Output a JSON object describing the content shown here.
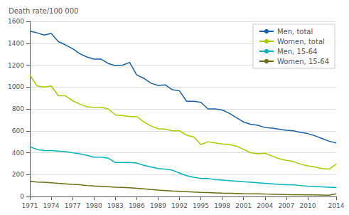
{
  "chart_data": {
    "type": "line",
    "ylabel": "Death rate/100 000",
    "x": [
      1971,
      1972,
      1973,
      1974,
      1975,
      1976,
      1977,
      1978,
      1979,
      1980,
      1981,
      1982,
      1983,
      1984,
      1985,
      1986,
      1987,
      1988,
      1989,
      1990,
      1991,
      1992,
      1993,
      1994,
      1995,
      1996,
      1997,
      1998,
      1999,
      2000,
      2001,
      2002,
      2003,
      2004,
      2005,
      2006,
      2007,
      2008,
      2009,
      2010,
      2011,
      2012,
      2013,
      2014
    ],
    "series": [
      {
        "name": "Men, total",
        "color": "#1a5fa8",
        "values": [
          1510,
          1495,
          1475,
          1490,
          1415,
          1385,
          1350,
          1305,
          1275,
          1255,
          1255,
          1215,
          1195,
          1200,
          1225,
          1110,
          1080,
          1035,
          1015,
          1020,
          975,
          965,
          870,
          870,
          860,
          800,
          800,
          790,
          760,
          720,
          680,
          660,
          650,
          630,
          625,
          615,
          605,
          600,
          585,
          575,
          555,
          530,
          505,
          490
        ]
      },
      {
        "name": "Women, total",
        "color": "#aec900",
        "values": [
          1110,
          1010,
          1000,
          1010,
          920,
          920,
          875,
          845,
          820,
          815,
          815,
          800,
          745,
          740,
          730,
          730,
          680,
          645,
          620,
          615,
          600,
          600,
          560,
          545,
          475,
          500,
          490,
          480,
          475,
          460,
          430,
          400,
          390,
          395,
          370,
          345,
          330,
          320,
          295,
          280,
          270,
          255,
          250,
          295
        ]
      },
      {
        "name": "Men, 15-64",
        "color": "#00b4bc",
        "values": [
          455,
          430,
          420,
          420,
          415,
          410,
          400,
          390,
          375,
          360,
          360,
          350,
          310,
          310,
          310,
          305,
          285,
          270,
          255,
          250,
          240,
          215,
          190,
          175,
          165,
          165,
          155,
          150,
          145,
          140,
          135,
          130,
          125,
          120,
          115,
          110,
          108,
          105,
          100,
          95,
          92,
          88,
          85,
          82
        ]
      },
      {
        "name": "Women, 15-64",
        "color": "#6b6b10",
        "values": [
          140,
          132,
          130,
          126,
          120,
          115,
          110,
          107,
          100,
          96,
          93,
          90,
          85,
          83,
          80,
          75,
          70,
          63,
          58,
          54,
          50,
          47,
          44,
          40,
          37,
          35,
          33,
          31,
          30,
          28,
          26,
          25,
          24,
          22,
          21,
          20,
          18,
          17,
          16,
          15,
          14,
          13,
          12,
          25
        ]
      }
    ],
    "xlim": [
      1971,
      2014
    ],
    "xticks": [
      1971,
      1974,
      1977,
      1980,
      1983,
      1986,
      1989,
      1992,
      1995,
      1998,
      2001,
      2004,
      2007,
      2010,
      2014
    ],
    "ylim": [
      0,
      1600
    ],
    "yticks": [
      0,
      200,
      400,
      600,
      800,
      1000,
      1200,
      1400,
      1600
    ],
    "grid": true,
    "legend": "upper right"
  }
}
